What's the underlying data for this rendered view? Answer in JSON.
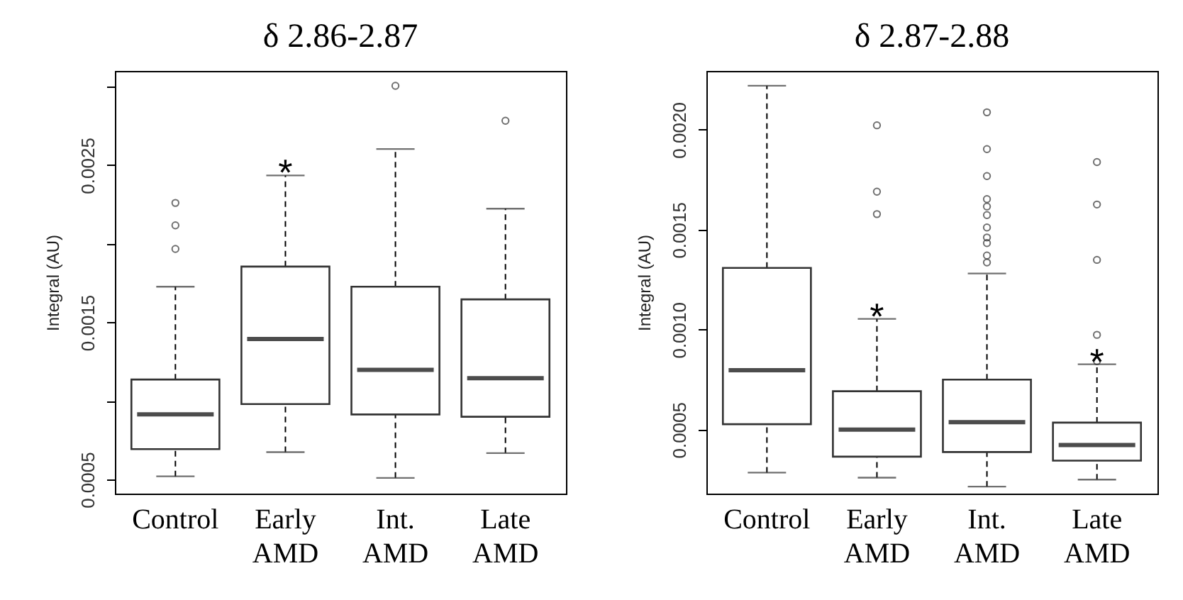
{
  "chart_data": [
    {
      "type": "box",
      "title": "δ 2.86-2.87",
      "ylabel": "Integral (AU)",
      "categories": [
        "Control",
        "Early AMD",
        "Int. AMD",
        "Late AMD"
      ],
      "boxes": [
        {
          "low": 0.00052,
          "q1": 0.000693,
          "median": 0.000914,
          "q3": 0.001136,
          "high": 0.001727,
          "outliers": [
            0.001967,
            0.002117,
            0.00226
          ]
        },
        {
          "low": 0.000674,
          "q1": 0.00098,
          "median": 0.001394,
          "q3": 0.001855,
          "high": 0.002435
        },
        {
          "low": 0.00051,
          "q1": 0.000914,
          "median": 0.001198,
          "q3": 0.001727,
          "high": 0.002603,
          "outliers": [
            0.003005
          ]
        },
        {
          "low": 0.000668,
          "q1": 0.000899,
          "median": 0.001145,
          "q3": 0.001646,
          "high": 0.002223,
          "outliers": [
            0.002783
          ]
        }
      ],
      "ylim": [
        0.00041,
        0.0031
      ],
      "yticks": [
        0.0005,
        {
          "value": 0.001,
          "label": null
        },
        0.0015,
        {
          "value": 0.002,
          "label": null
        },
        0.0025,
        {
          "value": 0.003,
          "label": null
        }
      ],
      "annotations": [
        {
          "text": "*",
          "x": "Early AMD"
        }
      ]
    },
    {
      "type": "box",
      "title": "δ 2.87-2.88",
      "ylabel": "Integral (AU)",
      "categories": [
        "Control",
        "Early AMD",
        "Int. AMD",
        "Late AMD"
      ],
      "boxes": [
        {
          "low": 0.000285,
          "q1": 0.000527,
          "median": 0.000797,
          "q3": 0.001309,
          "high": 0.00222
        },
        {
          "low": 0.00026,
          "q1": 0.000365,
          "median": 0.0005,
          "q3": 0.000692,
          "high": 0.001054,
          "outliers": [
            0.001578,
            0.00169,
            0.002022
          ]
        },
        {
          "low": 0.000215,
          "q1": 0.000388,
          "median": 0.000537,
          "q3": 0.00075,
          "high": 0.001281,
          "outliers": [
            0.001336,
            0.001371,
            0.001433,
            0.001461,
            0.001511,
            0.001573,
            0.001616,
            0.001653,
            0.001768,
            0.001903,
            0.002087
          ]
        },
        {
          "low": 0.00025,
          "q1": 0.000345,
          "median": 0.000423,
          "q3": 0.000535,
          "high": 0.000827,
          "outliers": [
            0.000842,
            0.000974,
            0.001349,
            0.001626,
            0.001838
          ]
        }
      ],
      "ylim": [
        0.00018,
        0.002294
      ],
      "yticks": [
        0.0005,
        {
          "value": 0.001,
          "label": "0.0010"
        },
        0.0015,
        {
          "value": 0.002,
          "label": "0.0020"
        }
      ],
      "annotations": [
        {
          "text": "*",
          "x": "Early AMD"
        },
        {
          "text": "*",
          "x": "Late AMD"
        }
      ]
    }
  ]
}
